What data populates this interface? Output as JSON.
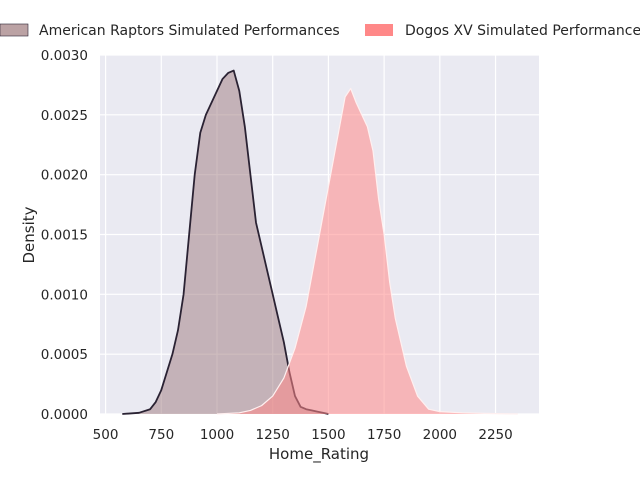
{
  "chart_data": {
    "type": "area",
    "title": "",
    "xlabel": "Home_Rating",
    "ylabel": "Density",
    "xlim": [
      475,
      2445
    ],
    "ylim": [
      0,
      0.003
    ],
    "xticks": [
      500,
      750,
      1000,
      1250,
      1500,
      1750,
      2000,
      2250
    ],
    "xtick_labels": [
      "500",
      "750",
      "1000",
      "1250",
      "1500",
      "1750",
      "2000",
      "2250"
    ],
    "yticks": [
      0,
      0.0005,
      0.001,
      0.0015,
      0.002,
      0.0025,
      0.003
    ],
    "ytick_labels": [
      "0.0000",
      "0.0005",
      "0.0010",
      "0.0015",
      "0.0020",
      "0.0025",
      "0.0030"
    ],
    "grid": true,
    "legend_position": "top, above plot",
    "series": [
      {
        "name": "American Raptors Simulated Performances",
        "fill_color": "#9e7a7e",
        "line_color": "#2a2233",
        "points": [
          [
            575,
            0
          ],
          [
            650,
            1e-05
          ],
          [
            700,
            4e-05
          ],
          [
            725,
            0.0001
          ],
          [
            750,
            0.0002
          ],
          [
            775,
            0.00035
          ],
          [
            800,
            0.0005
          ],
          [
            825,
            0.0007
          ],
          [
            850,
            0.001
          ],
          [
            875,
            0.0015
          ],
          [
            900,
            0.002
          ],
          [
            925,
            0.00235
          ],
          [
            950,
            0.0025
          ],
          [
            975,
            0.0026
          ],
          [
            1000,
            0.0027
          ],
          [
            1025,
            0.0028
          ],
          [
            1050,
            0.00285
          ],
          [
            1075,
            0.00287
          ],
          [
            1100,
            0.0027
          ],
          [
            1125,
            0.0024
          ],
          [
            1150,
            0.002
          ],
          [
            1175,
            0.0016
          ],
          [
            1200,
            0.0014
          ],
          [
            1225,
            0.0012
          ],
          [
            1250,
            0.001
          ],
          [
            1275,
            0.0008
          ],
          [
            1300,
            0.0006
          ],
          [
            1325,
            0.00035
          ],
          [
            1350,
            0.00015
          ],
          [
            1375,
            6e-05
          ],
          [
            1400,
            4e-05
          ],
          [
            1425,
            3e-05
          ],
          [
            1450,
            2e-05
          ],
          [
            1475,
            1e-05
          ],
          [
            1500,
            0
          ]
        ]
      },
      {
        "name": "Dogos XV Simulated Performances",
        "fill_color": "#ff8888",
        "line_color": "#fff0f0",
        "points": [
          [
            1000,
            0
          ],
          [
            1100,
            1e-05
          ],
          [
            1150,
            3e-05
          ],
          [
            1200,
            7e-05
          ],
          [
            1250,
            0.00015
          ],
          [
            1300,
            0.0003
          ],
          [
            1350,
            0.00055
          ],
          [
            1400,
            0.0009
          ],
          [
            1450,
            0.0014
          ],
          [
            1500,
            0.0019
          ],
          [
            1525,
            0.00215
          ],
          [
            1550,
            0.0024
          ],
          [
            1575,
            0.00265
          ],
          [
            1600,
            0.00272
          ],
          [
            1625,
            0.0026
          ],
          [
            1650,
            0.0025
          ],
          [
            1675,
            0.0024
          ],
          [
            1700,
            0.0022
          ],
          [
            1725,
            0.0018
          ],
          [
            1750,
            0.0015
          ],
          [
            1775,
            0.0011
          ],
          [
            1800,
            0.0008
          ],
          [
            1850,
            0.0004
          ],
          [
            1900,
            0.00015
          ],
          [
            1950,
            4e-05
          ],
          [
            2000,
            2e-05
          ],
          [
            2100,
            1e-05
          ],
          [
            2200,
            5e-06
          ],
          [
            2350,
            0
          ]
        ]
      }
    ]
  }
}
